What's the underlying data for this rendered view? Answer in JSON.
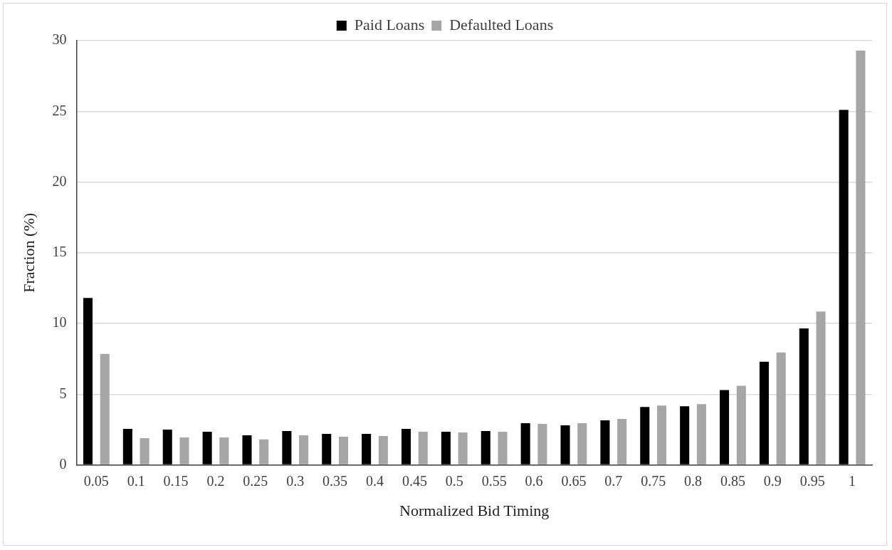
{
  "chart_data": {
    "type": "bar",
    "xlabel": "Normalized Bid Timing",
    "ylabel": "Fraction (%)",
    "categories": [
      "0.05",
      "0.1",
      "0.15",
      "0.2",
      "0.25",
      "0.3",
      "0.35",
      "0.4",
      "0.45",
      "0.5",
      "0.55",
      "0.6",
      "0.65",
      "0.7",
      "0.75",
      "0.8",
      "0.85",
      "0.9",
      "0.95",
      "1"
    ],
    "series": [
      {
        "name": "Paid Loans",
        "color": "#000000",
        "values": [
          11.8,
          2.55,
          2.5,
          2.35,
          2.1,
          2.4,
          2.2,
          2.2,
          2.55,
          2.35,
          2.4,
          2.95,
          2.8,
          3.15,
          4.1,
          4.15,
          5.3,
          7.3,
          9.65,
          25.1
        ]
      },
      {
        "name": "Defaulted Loans",
        "color": "#a6a6a6",
        "values": [
          7.85,
          1.9,
          1.95,
          1.95,
          1.8,
          2.1,
          2.0,
          2.05,
          2.35,
          2.3,
          2.35,
          2.9,
          2.95,
          3.25,
          4.2,
          4.3,
          5.6,
          7.95,
          10.85,
          29.3
        ]
      }
    ],
    "ylim": [
      0,
      30
    ],
    "yticks": [
      0,
      5,
      10,
      15,
      20,
      25,
      30
    ],
    "grid": "y",
    "legend": "top"
  }
}
